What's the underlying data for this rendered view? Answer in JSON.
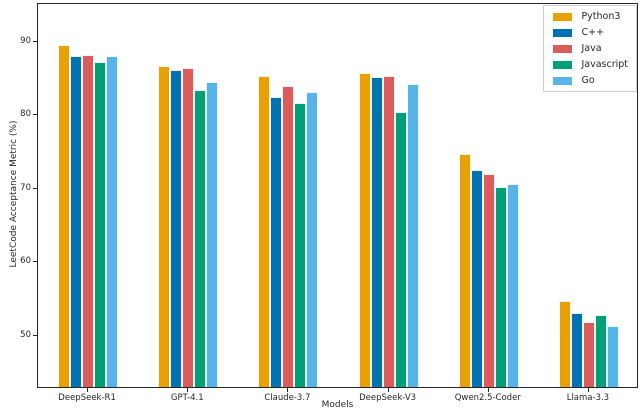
{
  "chart_data": {
    "type": "bar",
    "title": "",
    "xlabel": "Models",
    "ylabel": "LeetCode Acceptance Metric (%)",
    "categories": [
      "DeepSeek-R1",
      "GPT-4.1",
      "Claude-3.7",
      "DeepSeek-V3",
      "Qwen2.5-Coder",
      "Llama-3.3"
    ],
    "series": [
      {
        "name": "Python3",
        "color": "#E8A101",
        "values": [
          89.2,
          86.4,
          85.0,
          85.4,
          74.5,
          54.5
        ]
      },
      {
        "name": "C++",
        "color": "#0072B2",
        "values": [
          87.8,
          85.9,
          82.2,
          84.9,
          72.3,
          52.9
        ]
      },
      {
        "name": "Java",
        "color": "#DC5C5C",
        "values": [
          87.9,
          86.1,
          83.7,
          85.0,
          71.7,
          51.6
        ]
      },
      {
        "name": "Javascript",
        "color": "#00A077",
        "values": [
          86.9,
          83.2,
          81.4,
          80.1,
          70.0,
          52.6
        ]
      },
      {
        "name": "Go",
        "color": "#56B4E9",
        "values": [
          87.7,
          84.3,
          82.9,
          84.0,
          70.4,
          51.1
        ]
      }
    ],
    "y_ticks": [
      50,
      60,
      70,
      80,
      90
    ],
    "ylim": [
      42.8,
      95.1
    ],
    "legend_position": "upper right",
    "grid": false,
    "axis_color": "#262626",
    "tick_label_color": "#262626",
    "legend_border_color": "#cccccc"
  }
}
